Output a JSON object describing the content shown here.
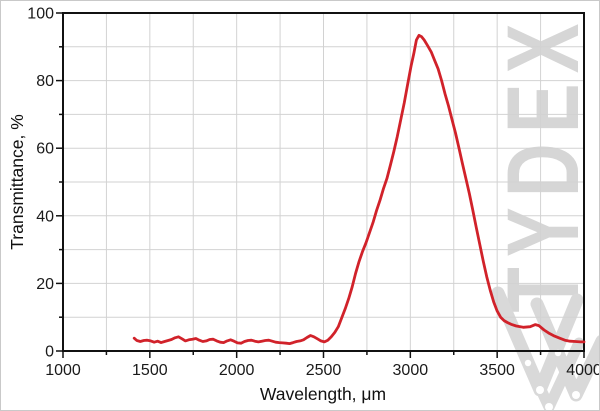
{
  "page": {
    "background": "#ffffff"
  },
  "colors": {
    "curve": "#d1222a",
    "grid": "#d2d2d2",
    "axis": "#111111",
    "text": "#1a1a1a",
    "watermark": "#d6d6d6",
    "logo": "#d9d9d9"
  },
  "watermark": {
    "text": "TYDEX",
    "logo_name": "tydex-w-logo"
  },
  "chart_data": {
    "type": "line",
    "title": "",
    "xlabel": "Wavelength, μm",
    "ylabel": "Transmittance, %",
    "xlim": [
      1000,
      4000
    ],
    "ylim": [
      0,
      100
    ],
    "x_major_ticks": [
      1000,
      1500,
      2000,
      2500,
      3000,
      3500,
      4000
    ],
    "x_minor_step": 250,
    "y_major_ticks": [
      0,
      20,
      40,
      60,
      80,
      100
    ],
    "y_minor_step": 10,
    "grid": "minor gridlines: every 250 um on x, every 10% on y",
    "legend": "none",
    "series": [
      {
        "name": "Transmittance",
        "color": "#d1222a",
        "points": [
          [
            1410,
            3.8
          ],
          [
            1425,
            3.1
          ],
          [
            1445,
            2.8
          ],
          [
            1465,
            3.1
          ],
          [
            1485,
            3.2
          ],
          [
            1505,
            3.0
          ],
          [
            1525,
            2.6
          ],
          [
            1545,
            2.9
          ],
          [
            1565,
            2.5
          ],
          [
            1585,
            2.8
          ],
          [
            1605,
            3.1
          ],
          [
            1625,
            3.4
          ],
          [
            1645,
            3.9
          ],
          [
            1665,
            4.2
          ],
          [
            1685,
            3.6
          ],
          [
            1705,
            3.0
          ],
          [
            1725,
            3.3
          ],
          [
            1745,
            3.5
          ],
          [
            1765,
            3.7
          ],
          [
            1785,
            3.2
          ],
          [
            1805,
            2.8
          ],
          [
            1825,
            3.0
          ],
          [
            1845,
            3.4
          ],
          [
            1865,
            3.5
          ],
          [
            1885,
            3.0
          ],
          [
            1905,
            2.6
          ],
          [
            1925,
            2.5
          ],
          [
            1945,
            3.0
          ],
          [
            1965,
            3.3
          ],
          [
            1985,
            2.9
          ],
          [
            2005,
            2.4
          ],
          [
            2025,
            2.3
          ],
          [
            2045,
            2.8
          ],
          [
            2065,
            3.1
          ],
          [
            2085,
            3.2
          ],
          [
            2105,
            2.9
          ],
          [
            2125,
            2.7
          ],
          [
            2145,
            2.9
          ],
          [
            2165,
            3.1
          ],
          [
            2185,
            3.2
          ],
          [
            2205,
            2.9
          ],
          [
            2225,
            2.6
          ],
          [
            2245,
            2.5
          ],
          [
            2265,
            2.4
          ],
          [
            2285,
            2.3
          ],
          [
            2305,
            2.2
          ],
          [
            2325,
            2.5
          ],
          [
            2345,
            2.8
          ],
          [
            2365,
            3.0
          ],
          [
            2385,
            3.3
          ],
          [
            2405,
            4.0
          ],
          [
            2425,
            4.6
          ],
          [
            2445,
            4.2
          ],
          [
            2465,
            3.6
          ],
          [
            2485,
            3.0
          ],
          [
            2505,
            2.7
          ],
          [
            2525,
            3.2
          ],
          [
            2545,
            4.2
          ],
          [
            2565,
            5.5
          ],
          [
            2585,
            7.2
          ],
          [
            2605,
            9.8
          ],
          [
            2625,
            12.5
          ],
          [
            2645,
            15.5
          ],
          [
            2665,
            19
          ],
          [
            2685,
            23
          ],
          [
            2705,
            26.5
          ],
          [
            2725,
            29.5
          ],
          [
            2745,
            32
          ],
          [
            2765,
            35
          ],
          [
            2785,
            38
          ],
          [
            2805,
            41.5
          ],
          [
            2825,
            44.5
          ],
          [
            2845,
            48
          ],
          [
            2865,
            51
          ],
          [
            2885,
            55
          ],
          [
            2905,
            59
          ],
          [
            2925,
            63.5
          ],
          [
            2945,
            68.5
          ],
          [
            2965,
            73.5
          ],
          [
            2985,
            79
          ],
          [
            3005,
            84.5
          ],
          [
            3020,
            88
          ],
          [
            3035,
            92
          ],
          [
            3050,
            93.4
          ],
          [
            3065,
            93
          ],
          [
            3080,
            92
          ],
          [
            3100,
            90.3
          ],
          [
            3120,
            88.5
          ],
          [
            3140,
            86
          ],
          [
            3160,
            83.5
          ],
          [
            3180,
            80
          ],
          [
            3200,
            76
          ],
          [
            3220,
            72.5
          ],
          [
            3240,
            68.5
          ],
          [
            3260,
            64.5
          ],
          [
            3280,
            60
          ],
          [
            3300,
            55.5
          ],
          [
            3320,
            51
          ],
          [
            3340,
            46.5
          ],
          [
            3360,
            41.5
          ],
          [
            3380,
            36.5
          ],
          [
            3400,
            31.5
          ],
          [
            3420,
            26.5
          ],
          [
            3440,
            22
          ],
          [
            3460,
            18
          ],
          [
            3480,
            14.5
          ],
          [
            3500,
            11.8
          ],
          [
            3520,
            10
          ],
          [
            3540,
            9
          ],
          [
            3560,
            8.4
          ],
          [
            3580,
            7.9
          ],
          [
            3610,
            7.4
          ],
          [
            3650,
            7.0
          ],
          [
            3690,
            7.2
          ],
          [
            3720,
            7.8
          ],
          [
            3740,
            7.5
          ],
          [
            3770,
            6.2
          ],
          [
            3800,
            5.2
          ],
          [
            3830,
            4.4
          ],
          [
            3860,
            3.8
          ],
          [
            3890,
            3.2
          ],
          [
            3920,
            2.9
          ],
          [
            3950,
            2.8
          ],
          [
            3980,
            2.7
          ],
          [
            4000,
            2.7
          ]
        ]
      }
    ]
  }
}
